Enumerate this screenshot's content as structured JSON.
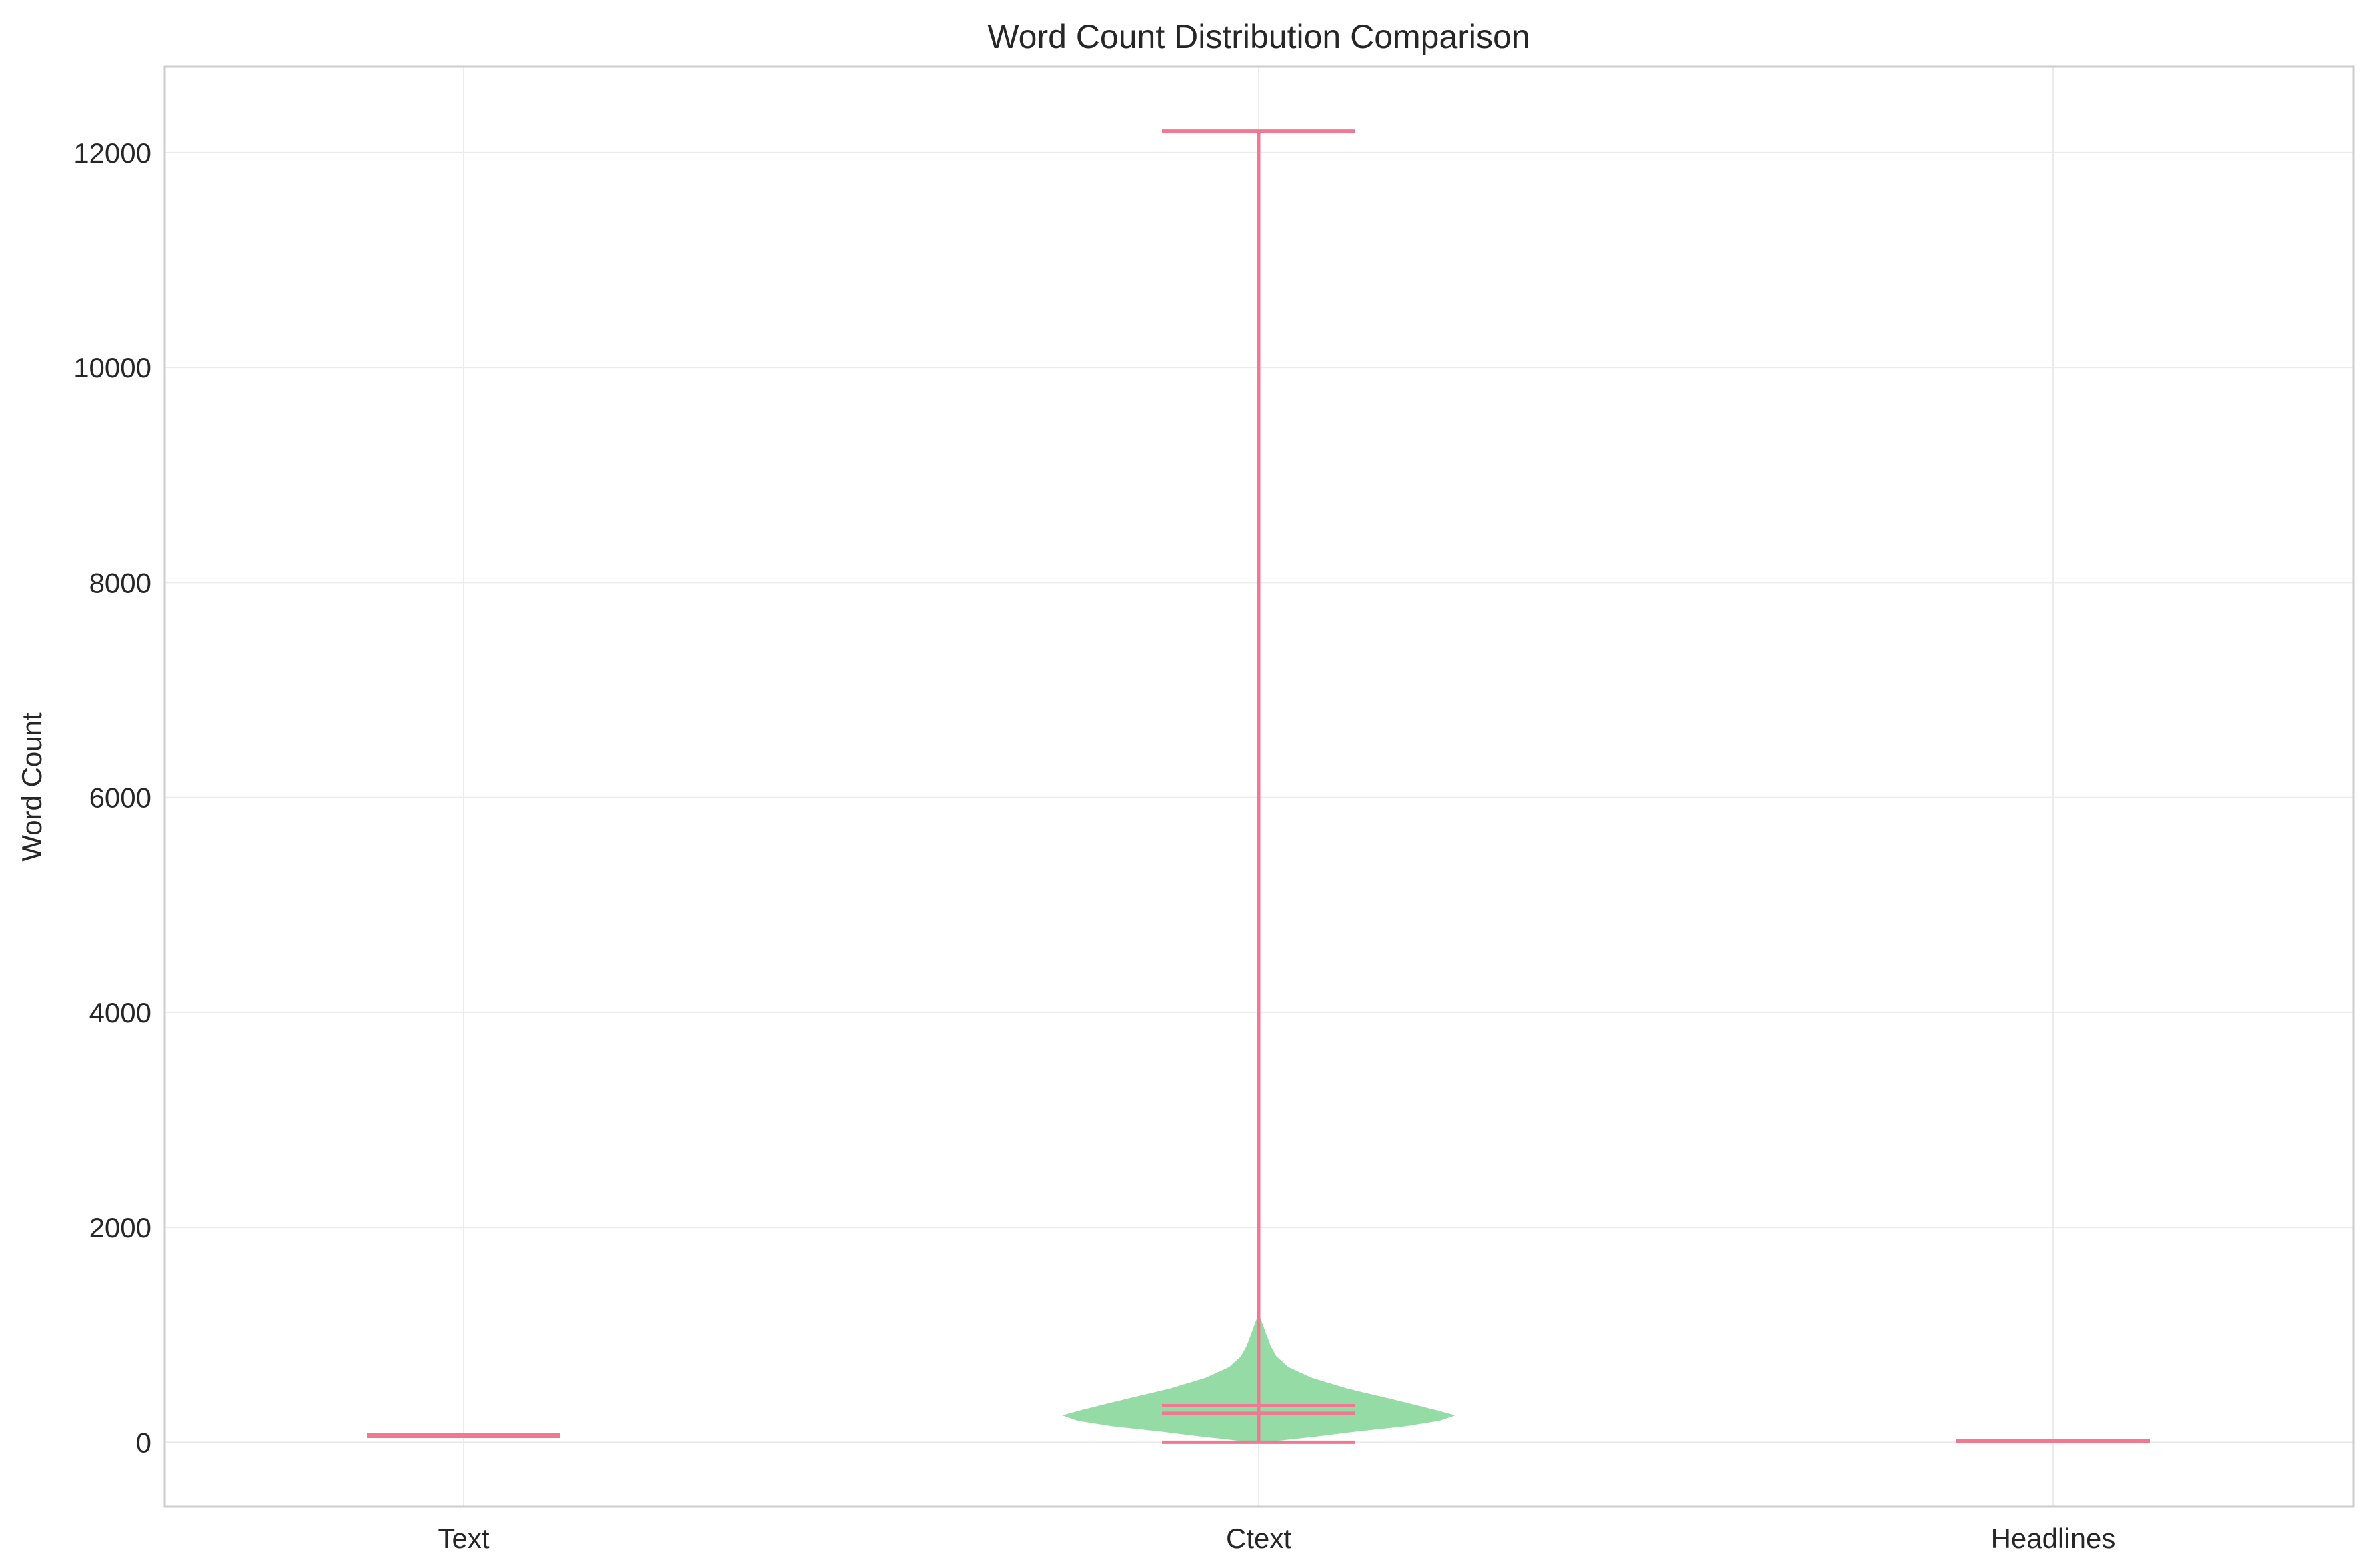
{
  "chart_data": {
    "type": "violin",
    "title": "Word Count Distribution Comparison",
    "xlabel": "",
    "ylabel": "Word Count",
    "categories": [
      "Text",
      "Ctext",
      "Headlines"
    ],
    "ylim": [
      -600,
      12800
    ],
    "yticks": [
      0,
      2000,
      4000,
      6000,
      8000,
      10000,
      12000
    ],
    "grid": true,
    "colors": {
      "body": "#8fd9a0",
      "lines": "#f07890",
      "grid": "#ebebeb",
      "frame": "#cccccc"
    },
    "violins": [
      {
        "category": "Text",
        "min": 55,
        "max": 70,
        "mean": 62,
        "median": 62,
        "density": [
          [
            55,
            0.0
          ],
          [
            62,
            0.02
          ],
          [
            70,
            0.0
          ]
        ]
      },
      {
        "category": "Ctext",
        "min": 0,
        "max": 12200,
        "mean": 340,
        "median": 270,
        "density": [
          [
            0,
            0.03
          ],
          [
            50,
            0.28
          ],
          [
            100,
            0.5
          ],
          [
            150,
            0.75
          ],
          [
            200,
            0.92
          ],
          [
            250,
            1.0
          ],
          [
            300,
            0.9
          ],
          [
            400,
            0.68
          ],
          [
            500,
            0.45
          ],
          [
            600,
            0.27
          ],
          [
            700,
            0.15
          ],
          [
            800,
            0.09
          ],
          [
            900,
            0.06
          ],
          [
            1000,
            0.04
          ],
          [
            1100,
            0.02
          ],
          [
            1200,
            0.0
          ]
        ]
      },
      {
        "category": "Headlines",
        "min": 5,
        "max": 15,
        "mean": 10,
        "median": 10,
        "density": [
          [
            5,
            0.0
          ],
          [
            10,
            0.02
          ],
          [
            15,
            0.0
          ]
        ]
      }
    ]
  }
}
